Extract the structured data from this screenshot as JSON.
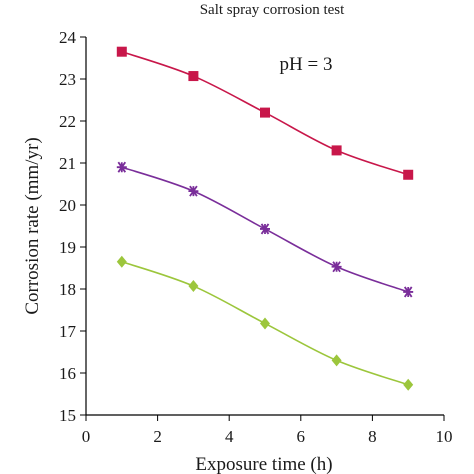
{
  "chart_data": {
    "type": "line",
    "title": "Salt spray corrosion test",
    "annotation": "pH = 3",
    "xlabel": "Exposure time (h)",
    "ylabel": "Corrosion rate (mm/yr)",
    "xlim": [
      0,
      10
    ],
    "ylim": [
      15,
      24
    ],
    "xticks": [
      "0",
      "2",
      "4",
      "6",
      "8",
      "10"
    ],
    "yticks": [
      "15",
      "16",
      "17",
      "18",
      "19",
      "20",
      "21",
      "22",
      "23",
      "24"
    ],
    "grid": false,
    "x": [
      1,
      3,
      5,
      7,
      9
    ],
    "series": [
      {
        "values": [
          23.65,
          23.07,
          22.2,
          21.3,
          20.72
        ],
        "color": "#c8174a",
        "marker": "square"
      },
      {
        "values": [
          20.9,
          20.33,
          19.43,
          18.53,
          17.93
        ],
        "color": "#7a2e9a",
        "marker": "asterisk"
      },
      {
        "values": [
          18.65,
          18.07,
          17.18,
          16.3,
          15.72
        ],
        "color": "#9cc63c",
        "marker": "diamond"
      }
    ]
  }
}
